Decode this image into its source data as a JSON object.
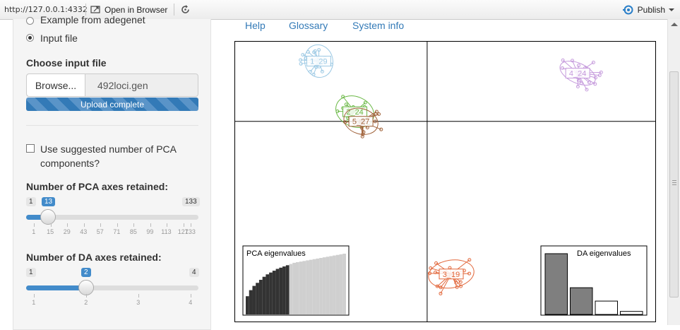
{
  "topbar": {
    "url": "http://127.0.0.1:4332",
    "open_browser_label": "Open in Browser",
    "publish_label": "Publish"
  },
  "sidebar": {
    "radio_example": "Example from adegenet",
    "radio_input": "Input file",
    "choose_file_label": "Choose input file",
    "browse_label": "Browse...",
    "file_name": "492loci.gen",
    "upload_status": "Upload complete",
    "upload_progress": 1.0,
    "checkbox_label": "Use suggested number of PCA components?",
    "pca_slider": {
      "label": "Number of PCA axes retained:",
      "min": 1,
      "max": 133,
      "value": 13,
      "ticks": [
        "1",
        "15",
        "29",
        "43",
        "57",
        "71",
        "85",
        "99",
        "113",
        "127",
        "133"
      ]
    },
    "da_slider": {
      "label": "Number of DA axes retained:",
      "min": 1,
      "max": 4,
      "value": 2,
      "ticks": [
        "1",
        "2",
        "3",
        "4"
      ]
    }
  },
  "tabs": [
    "Help",
    "Glossary",
    "System info"
  ],
  "chart_data": [
    {
      "type": "scatter",
      "title": "",
      "series": [
        {
          "name": "1_29",
          "color": "#9cc9e4",
          "center": [
            -0.9,
            0.75
          ]
        },
        {
          "name": "2_24",
          "color": "#6ab845",
          "center": [
            -0.6,
            0.12
          ]
        },
        {
          "name": "5_27",
          "color": "#a0623a",
          "center": [
            -0.55,
            0.0
          ]
        },
        {
          "name": "4_24",
          "color": "#c59adc",
          "center": [
            1.25,
            0.6
          ]
        },
        {
          "name": "3_19",
          "color": "#e2683c",
          "center": [
            0.2,
            -1.9
          ]
        }
      ],
      "xlim": [
        -1.6,
        1.9
      ],
      "ylim": [
        -2.5,
        1.0
      ],
      "grid": true
    },
    {
      "type": "bar",
      "title": "PCA eigenvalues",
      "values": [
        0.3,
        0.4,
        0.47,
        0.52,
        0.57,
        0.62,
        0.66,
        0.69,
        0.72,
        0.75,
        0.77,
        0.79,
        0.81,
        0.83,
        0.85,
        0.86,
        0.87,
        0.88,
        0.89,
        0.9,
        0.91,
        0.92,
        0.93,
        0.94,
        0.95,
        0.96,
        0.97,
        0.98,
        0.99,
        1.0
      ],
      "retained": 13
    },
    {
      "type": "bar",
      "title": "DA eigenvalues",
      "values": [
        1.0,
        0.44,
        0.22,
        0.05
      ],
      "retained": 2
    }
  ]
}
